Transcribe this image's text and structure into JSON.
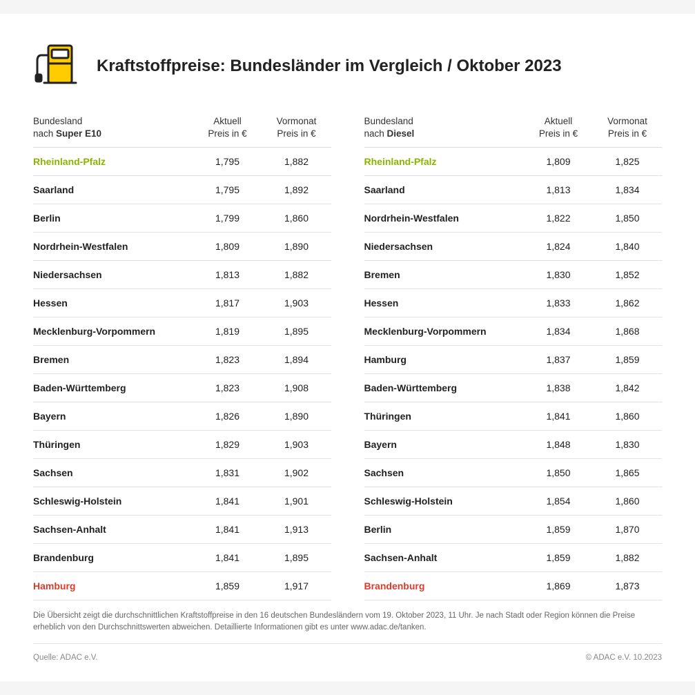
{
  "title": "Kraftstoffpreise: Bundesländer im Vergleich / Oktober 2023",
  "colors": {
    "cheapest": "#8bb400",
    "priciest": "#d93a2a",
    "pump_yellow": "#ffcc00",
    "pump_stroke": "#222222",
    "text": "#222222",
    "border": "#e3e3e3"
  },
  "headers": {
    "state_label": "Bundesland",
    "by_prefix": "nach ",
    "current_l1": "Aktuell",
    "current_l2": "Preis in €",
    "prev_l1": "Vormonat",
    "prev_l2": "Preis in €"
  },
  "tables": [
    {
      "fuel": "Super E10",
      "rows": [
        {
          "name": "Rheinland-Pfalz",
          "cur": "1,795",
          "prev": "1,882",
          "flag": "cheapest"
        },
        {
          "name": "Saarland",
          "cur": "1,795",
          "prev": "1,892"
        },
        {
          "name": "Berlin",
          "cur": "1,799",
          "prev": "1,860"
        },
        {
          "name": "Nordrhein-Westfalen",
          "cur": "1,809",
          "prev": "1,890"
        },
        {
          "name": "Niedersachsen",
          "cur": "1,813",
          "prev": "1,882"
        },
        {
          "name": "Hessen",
          "cur": "1,817",
          "prev": "1,903"
        },
        {
          "name": "Mecklenburg-Vorpommern",
          "cur": "1,819",
          "prev": "1,895"
        },
        {
          "name": "Bremen",
          "cur": "1,823",
          "prev": "1,894"
        },
        {
          "name": "Baden-Württemberg",
          "cur": "1,823",
          "prev": "1,908"
        },
        {
          "name": "Bayern",
          "cur": "1,826",
          "prev": "1,890"
        },
        {
          "name": "Thüringen",
          "cur": "1,829",
          "prev": "1,903"
        },
        {
          "name": "Sachsen",
          "cur": "1,831",
          "prev": "1,902"
        },
        {
          "name": "Schleswig-Holstein",
          "cur": "1,841",
          "prev": "1,901"
        },
        {
          "name": "Sachsen-Anhalt",
          "cur": "1,841",
          "prev": "1,913"
        },
        {
          "name": "Brandenburg",
          "cur": "1,841",
          "prev": "1,895"
        },
        {
          "name": "Hamburg",
          "cur": "1,859",
          "prev": "1,917",
          "flag": "priciest"
        }
      ]
    },
    {
      "fuel": "Diesel",
      "rows": [
        {
          "name": "Rheinland-Pfalz",
          "cur": "1,809",
          "prev": "1,825",
          "flag": "cheapest"
        },
        {
          "name": "Saarland",
          "cur": "1,813",
          "prev": "1,834"
        },
        {
          "name": "Nordrhein-Westfalen",
          "cur": "1,822",
          "prev": "1,850"
        },
        {
          "name": "Niedersachsen",
          "cur": "1,824",
          "prev": "1,840"
        },
        {
          "name": "Bremen",
          "cur": "1,830",
          "prev": "1,852"
        },
        {
          "name": "Hessen",
          "cur": "1,833",
          "prev": "1,862"
        },
        {
          "name": "Mecklenburg-Vorpommern",
          "cur": "1,834",
          "prev": "1,868"
        },
        {
          "name": "Hamburg",
          "cur": "1,837",
          "prev": "1,859"
        },
        {
          "name": "Baden-Württemberg",
          "cur": "1,838",
          "prev": "1,842"
        },
        {
          "name": "Thüringen",
          "cur": "1,841",
          "prev": "1,860"
        },
        {
          "name": "Bayern",
          "cur": "1,848",
          "prev": "1,830"
        },
        {
          "name": "Sachsen",
          "cur": "1,850",
          "prev": "1,865"
        },
        {
          "name": "Schleswig-Holstein",
          "cur": "1,854",
          "prev": "1,860"
        },
        {
          "name": "Berlin",
          "cur": "1,859",
          "prev": "1,870"
        },
        {
          "name": "Sachsen-Anhalt",
          "cur": "1,859",
          "prev": "1,882"
        },
        {
          "name": "Brandenburg",
          "cur": "1,869",
          "prev": "1,873",
          "flag": "priciest"
        }
      ]
    }
  ],
  "note": "Die Übersicht zeigt die durchschnittlichen Kraftstoffpreise in den 16 deutschen Bundesländern vom 19. Oktober 2023, 11 Uhr. Je nach Stadt oder Region können die Preise erheblich von den Durchschnittswerten abweichen. Detaillierte Informationen gibt es unter www.adac.de/tanken.",
  "source": "Quelle: ADAC e.V.",
  "copyright": "© ADAC e.V. 10.2023"
}
